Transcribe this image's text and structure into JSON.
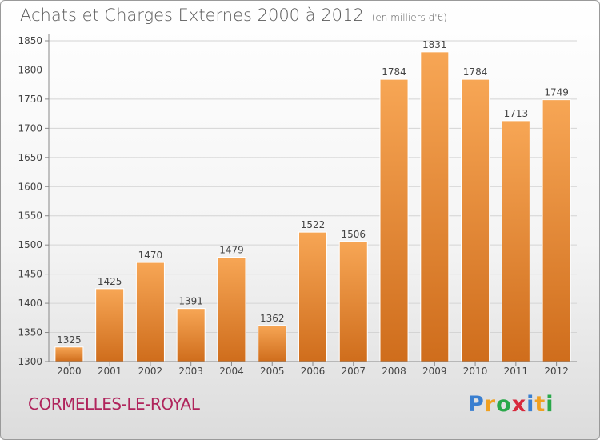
{
  "title": "Achats et Charges Externes 2000 à 2012",
  "subtitle": "(en milliers d'€)",
  "location": "CORMELLES-LE-ROYAL",
  "brand": {
    "letters": [
      "P",
      "r",
      "o",
      "x",
      "i",
      "t",
      "i"
    ],
    "colors": [
      "#3a7fd0",
      "#f0a020",
      "#2aa84a",
      "#d8283c",
      "#3a7fd0",
      "#f0a020",
      "#2aa84a"
    ]
  },
  "chart_data": {
    "type": "bar",
    "categories": [
      "2000",
      "2001",
      "2002",
      "2003",
      "2004",
      "2005",
      "2006",
      "2007",
      "2008",
      "2009",
      "2010",
      "2011",
      "2012"
    ],
    "values": [
      1325,
      1425,
      1470,
      1391,
      1479,
      1362,
      1522,
      1506,
      1784,
      1831,
      1784,
      1713,
      1749
    ],
    "ylim": [
      1300,
      1850
    ],
    "yticks": [
      1300,
      1350,
      1400,
      1450,
      1500,
      1550,
      1600,
      1650,
      1700,
      1750,
      1800,
      1850
    ],
    "grid": true,
    "bar_color": "#f2963f",
    "bar_color_dark": "#d9741f"
  }
}
